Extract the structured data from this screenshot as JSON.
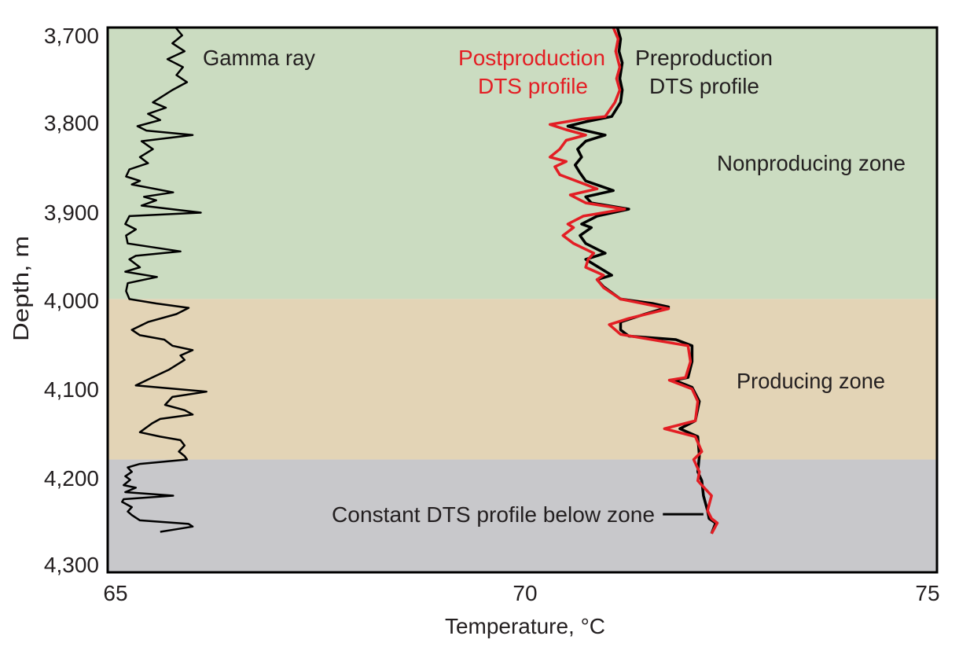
{
  "chart_data": {
    "type": "line",
    "xlabel": "Temperature, °C",
    "ylabel": "Depth, m",
    "xlim": [
      64.9,
      75.1
    ],
    "ylim": [
      4309,
      3691
    ],
    "y_inverted": true,
    "x_ticks": [
      "65",
      "70",
      "75"
    ],
    "x_tick_values": [
      65,
      70,
      75
    ],
    "y_ticks": [
      "3,700",
      "3,800",
      "3,900",
      "4,000",
      "4,100",
      "4,200",
      "4,300"
    ],
    "y_tick_values": [
      3700,
      3800,
      3900,
      4000,
      4100,
      4200,
      4300
    ],
    "grid": false,
    "zones": [
      {
        "name": "Nonproducing zone",
        "from": 3691,
        "to": 3999,
        "color": "#cbdcc1"
      },
      {
        "name": "Producing zone",
        "from": 3999,
        "to": 4181,
        "color": "#e3d4b6"
      },
      {
        "name": "below zone",
        "from": 4181,
        "to": 4309,
        "color": "#c8c8cb"
      }
    ],
    "annotations": {
      "gamma": "Gamma ray",
      "post_1": "Postproduction",
      "post_2": "DTS profile",
      "pre_1": "Preproduction",
      "pre_2": "DTS profile",
      "nonproducing": "Nonproducing zone",
      "producing": "Producing zone",
      "constant": "Constant DTS profile below zone"
    },
    "callout_line": {
      "depth": 4243,
      "t_from": 71.74,
      "t_to": 72.24
    },
    "series": [
      {
        "key": "gamma",
        "color": "#000000",
        "points": [
          [
            3691,
            65.74
          ],
          [
            3700,
            65.82
          ],
          [
            3709,
            65.7
          ],
          [
            3718,
            65.85
          ],
          [
            3727,
            65.64
          ],
          [
            3736,
            65.83
          ],
          [
            3745,
            65.75
          ],
          [
            3753,
            65.88
          ],
          [
            3762,
            65.7
          ],
          [
            3776,
            65.46
          ],
          [
            3782,
            65.62
          ],
          [
            3789,
            65.4
          ],
          [
            3796,
            65.55
          ],
          [
            3803,
            65.27
          ],
          [
            3808,
            65.38
          ],
          [
            3813,
            65.95
          ],
          [
            3820,
            65.32
          ],
          [
            3829,
            65.46
          ],
          [
            3838,
            65.3
          ],
          [
            3845,
            65.4
          ],
          [
            3852,
            65.17
          ],
          [
            3860,
            65.13
          ],
          [
            3865,
            65.3
          ],
          [
            3869,
            65.2
          ],
          [
            3878,
            65.71
          ],
          [
            3883,
            65.35
          ],
          [
            3887,
            65.5
          ],
          [
            3893,
            65.32
          ],
          [
            3901,
            66.05
          ],
          [
            3905,
            65.17
          ],
          [
            3914,
            65.12
          ],
          [
            3920,
            65.25
          ],
          [
            3927,
            65.13
          ],
          [
            3936,
            65.15
          ],
          [
            3945,
            65.8
          ],
          [
            3950,
            65.25
          ],
          [
            3954,
            65.17
          ],
          [
            3963,
            65.3
          ],
          [
            3968,
            65.12
          ],
          [
            3974,
            65.51
          ],
          [
            3981,
            65.15
          ],
          [
            3990,
            65.13
          ],
          [
            3999,
            65.17
          ],
          [
            4004,
            65.5
          ],
          [
            4009,
            65.9
          ],
          [
            4016,
            65.75
          ],
          [
            4025,
            65.4
          ],
          [
            4034,
            65.2
          ],
          [
            4040,
            65.3
          ],
          [
            4045,
            65.6
          ],
          [
            4052,
            65.7
          ],
          [
            4057,
            65.95
          ],
          [
            4063,
            65.8
          ],
          [
            4068,
            65.85
          ],
          [
            4079,
            65.66
          ],
          [
            4088,
            65.45
          ],
          [
            4097,
            65.25
          ],
          [
            4104,
            66.12
          ],
          [
            4110,
            65.7
          ],
          [
            4119,
            65.61
          ],
          [
            4125,
            65.85
          ],
          [
            4130,
            65.95
          ],
          [
            4135,
            65.55
          ],
          [
            4140,
            65.45
          ],
          [
            4150,
            65.3
          ],
          [
            4155,
            65.55
          ],
          [
            4159,
            65.8
          ],
          [
            4165,
            65.85
          ],
          [
            4172,
            65.78
          ],
          [
            4177,
            65.85
          ],
          [
            4181,
            65.88
          ],
          [
            4186,
            65.3
          ],
          [
            4190,
            65.15
          ],
          [
            4195,
            65.2
          ],
          [
            4200,
            65.12
          ],
          [
            4204,
            65.18
          ],
          [
            4210,
            65.1
          ],
          [
            4213,
            65.25
          ],
          [
            4218,
            65.12
          ],
          [
            4222,
            65.71
          ],
          [
            4226,
            65.1
          ],
          [
            4229,
            65.08
          ],
          [
            4235,
            65.2
          ],
          [
            4240,
            65.15
          ],
          [
            4244,
            65.2
          ],
          [
            4250,
            65.3
          ],
          [
            4254,
            65.9
          ],
          [
            4257,
            65.95
          ],
          [
            4260,
            65.75
          ],
          [
            4263,
            65.55
          ]
        ]
      },
      {
        "key": "pre",
        "color": "#000000",
        "points": [
          [
            3691,
            71.18
          ],
          [
            3704,
            71.22
          ],
          [
            3718,
            71.2
          ],
          [
            3731,
            71.24
          ],
          [
            3749,
            71.21
          ],
          [
            3762,
            71.24
          ],
          [
            3776,
            71.22
          ],
          [
            3792,
            71.11
          ],
          [
            3798,
            70.79
          ],
          [
            3803,
            70.57
          ],
          [
            3807,
            70.74
          ],
          [
            3813,
            71.03
          ],
          [
            3820,
            70.79
          ],
          [
            3829,
            70.69
          ],
          [
            3838,
            70.74
          ],
          [
            3847,
            70.66
          ],
          [
            3856,
            70.72
          ],
          [
            3865,
            70.79
          ],
          [
            3876,
            71.13
          ],
          [
            3883,
            70.79
          ],
          [
            3890,
            70.86
          ],
          [
            3897,
            71.32
          ],
          [
            3905,
            70.93
          ],
          [
            3914,
            70.74
          ],
          [
            3918,
            70.86
          ],
          [
            3927,
            70.72
          ],
          [
            3936,
            70.79
          ],
          [
            3947,
            71.03
          ],
          [
            3954,
            70.79
          ],
          [
            3963,
            70.95
          ],
          [
            3972,
            71.11
          ],
          [
            3977,
            70.93
          ],
          [
            3985,
            71.01
          ],
          [
            3999,
            71.22
          ],
          [
            4004,
            71.61
          ],
          [
            4008,
            71.81
          ],
          [
            4016,
            71.52
          ],
          [
            4025,
            71.22
          ],
          [
            4034,
            71.22
          ],
          [
            4041,
            71.32
          ],
          [
            4045,
            71.9
          ],
          [
            4052,
            72.1
          ],
          [
            4070,
            72.1
          ],
          [
            4088,
            72.05
          ],
          [
            4091,
            71.88
          ],
          [
            4099,
            72.1
          ],
          [
            4115,
            72.19
          ],
          [
            4137,
            72.14
          ],
          [
            4146,
            71.95
          ],
          [
            4155,
            72.17
          ],
          [
            4177,
            72.19
          ],
          [
            4195,
            72.17
          ],
          [
            4205,
            72.22
          ],
          [
            4222,
            72.24
          ],
          [
            4239,
            72.29
          ],
          [
            4248,
            72.31
          ],
          [
            4253,
            72.39
          ],
          [
            4265,
            72.34
          ]
        ]
      },
      {
        "key": "post",
        "color": "#e31e24",
        "points": [
          [
            3691,
            71.13
          ],
          [
            3704,
            71.19
          ],
          [
            3718,
            71.16
          ],
          [
            3736,
            71.21
          ],
          [
            3749,
            71.17
          ],
          [
            3762,
            71.21
          ],
          [
            3776,
            71.15
          ],
          [
            3792,
            71.03
          ],
          [
            3795,
            70.74
          ],
          [
            3801,
            70.35
          ],
          [
            3807,
            70.55
          ],
          [
            3813,
            70.79
          ],
          [
            3819,
            70.55
          ],
          [
            3829,
            70.47
          ],
          [
            3838,
            70.35
          ],
          [
            3843,
            70.55
          ],
          [
            3849,
            70.41
          ],
          [
            3858,
            70.47
          ],
          [
            3874,
            70.93
          ],
          [
            3881,
            70.6
          ],
          [
            3890,
            70.79
          ],
          [
            3897,
            71.27
          ],
          [
            3905,
            70.76
          ],
          [
            3914,
            70.57
          ],
          [
            3918,
            70.64
          ],
          [
            3927,
            70.51
          ],
          [
            3936,
            70.64
          ],
          [
            3947,
            70.89
          ],
          [
            3954,
            70.82
          ],
          [
            3963,
            70.79
          ],
          [
            3972,
            71.01
          ],
          [
            3977,
            70.93
          ],
          [
            3986,
            71.01
          ],
          [
            3999,
            71.22
          ],
          [
            4010,
            71.81
          ],
          [
            4021,
            71.32
          ],
          [
            4028,
            71.08
          ],
          [
            4039,
            71.22
          ],
          [
            4052,
            72.05
          ],
          [
            4070,
            72.08
          ],
          [
            4088,
            72.02
          ],
          [
            4091,
            71.82
          ],
          [
            4101,
            72.1
          ],
          [
            4115,
            72.17
          ],
          [
            4137,
            72.14
          ],
          [
            4146,
            71.76
          ],
          [
            4155,
            72.14
          ],
          [
            4172,
            72.22
          ],
          [
            4181,
            72.12
          ],
          [
            4195,
            72.19
          ],
          [
            4205,
            72.17
          ],
          [
            4222,
            72.34
          ],
          [
            4239,
            72.29
          ],
          [
            4248,
            72.34
          ],
          [
            4253,
            72.41
          ],
          [
            4265,
            72.34
          ]
        ]
      }
    ]
  }
}
